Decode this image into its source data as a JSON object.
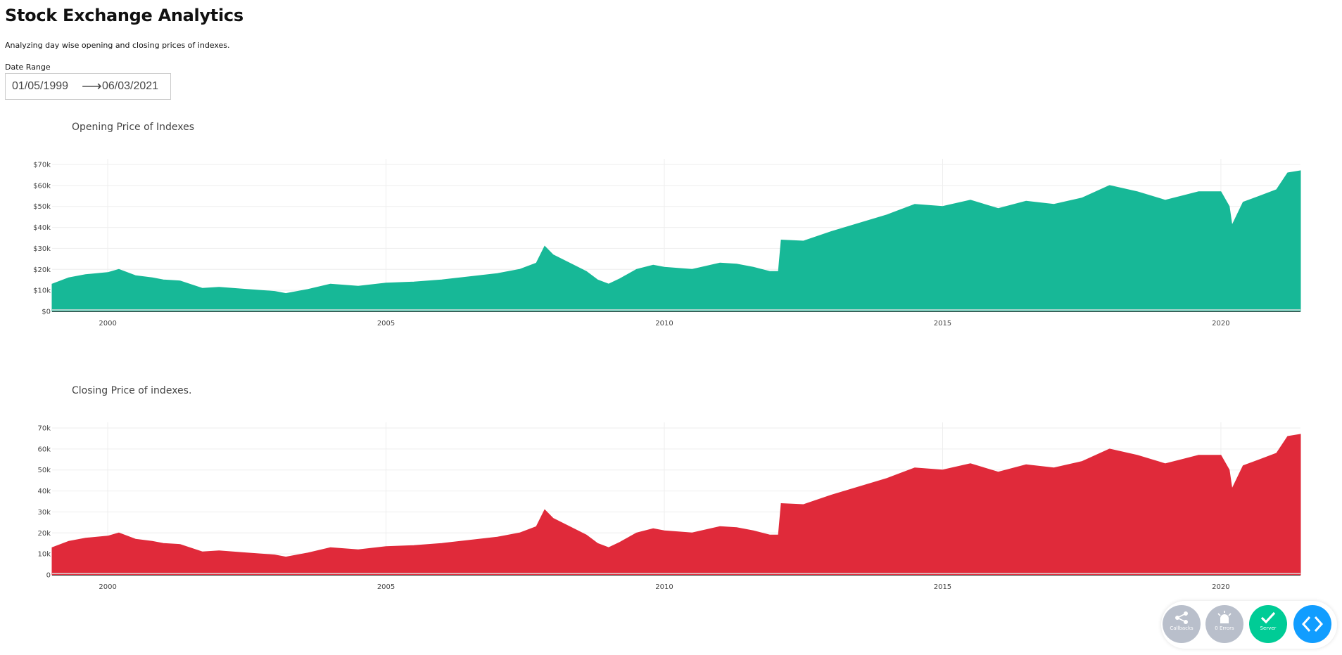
{
  "page": {
    "title": "Stock Exchange Analytics",
    "subtitle": "Analyzing day wise opening and closing prices of indexes.",
    "date_range": {
      "label": "Date Range",
      "start": "01/05/1999",
      "end": "06/03/2021",
      "separator": "⟶"
    }
  },
  "debug_menu": {
    "callbacks_label": "Callbacks",
    "errors_label": "0 Errors",
    "server_label": "Server",
    "colors": {
      "inactive": "#b9bfcb",
      "server": "#00cc96",
      "toggle": "#119dff"
    }
  },
  "chart_data": [
    {
      "type": "area",
      "title": "Opening Price of Indexes",
      "color": "#17b897",
      "x_ticks": [
        2000,
        2005,
        2010,
        2015,
        2020
      ],
      "x_tick_labels": [
        "2000",
        "2005",
        "2010",
        "2015",
        "2020"
      ],
      "y_ticks": [
        0,
        10000,
        20000,
        30000,
        40000,
        50000,
        60000,
        70000
      ],
      "y_tick_labels": [
        "$0",
        "$10k",
        "$20k",
        "$30k",
        "$40k",
        "$50k",
        "$60k",
        "$70k"
      ],
      "xlim": [
        1999.0,
        2021.43
      ],
      "ylim": [
        0,
        70000
      ],
      "grid": true,
      "x": [
        1999.0,
        1999.3,
        1999.6,
        2000.0,
        2000.2,
        2000.5,
        2000.8,
        2001.0,
        2001.3,
        2001.7,
        2002.0,
        2002.5,
        2003.0,
        2003.2,
        2003.6,
        2004.0,
        2004.5,
        2005.0,
        2005.5,
        2006.0,
        2006.5,
        2007.0,
        2007.4,
        2007.7,
        2007.85,
        2008.0,
        2008.3,
        2008.6,
        2008.8,
        2009.0,
        2009.2,
        2009.5,
        2009.8,
        2010.0,
        2010.5,
        2011.0,
        2011.3,
        2011.6,
        2011.9,
        2012.05,
        2012.1,
        2012.5,
        2013.0,
        2013.5,
        2014.0,
        2014.5,
        2015.0,
        2015.5,
        2016.0,
        2016.5,
        2017.0,
        2017.5,
        2018.0,
        2018.5,
        2019.0,
        2019.3,
        2019.6,
        2020.0,
        2020.15,
        2020.2,
        2020.4,
        2020.7,
        2021.0,
        2021.2,
        2021.43
      ],
      "y": [
        13000,
        16000,
        17500,
        18500,
        20000,
        17000,
        16000,
        15000,
        14500,
        11000,
        11500,
        10500,
        9500,
        8500,
        10500,
        13000,
        12000,
        13500,
        14000,
        15000,
        16500,
        18000,
        20000,
        23000,
        31000,
        27000,
        23000,
        19000,
        15000,
        13000,
        15500,
        20000,
        22000,
        21000,
        20000,
        23000,
        22500,
        21000,
        19000,
        19000,
        34000,
        33500,
        38000,
        42000,
        46000,
        51000,
        50000,
        53000,
        49000,
        52500,
        51000,
        54000,
        60000,
        57000,
        53000,
        55000,
        57000,
        57000,
        50000,
        41000,
        52000,
        55000,
        58000,
        66000,
        67000
      ]
    },
    {
      "type": "area",
      "title": "Closing Price of indexes.",
      "color": "#e02a3a",
      "x_ticks": [
        2000,
        2005,
        2010,
        2015,
        2020
      ],
      "x_tick_labels": [
        "2000",
        "2005",
        "2010",
        "2015",
        "2020"
      ],
      "y_ticks": [
        0,
        10000,
        20000,
        30000,
        40000,
        50000,
        60000,
        70000
      ],
      "y_tick_labels": [
        "0",
        "10k",
        "20k",
        "30k",
        "40k",
        "50k",
        "60k",
        "70k"
      ],
      "xlim": [
        1999.0,
        2021.43
      ],
      "ylim": [
        0,
        70000
      ],
      "grid": true,
      "x": [
        1999.0,
        1999.3,
        1999.6,
        2000.0,
        2000.2,
        2000.5,
        2000.8,
        2001.0,
        2001.3,
        2001.7,
        2002.0,
        2002.5,
        2003.0,
        2003.2,
        2003.6,
        2004.0,
        2004.5,
        2005.0,
        2005.5,
        2006.0,
        2006.5,
        2007.0,
        2007.4,
        2007.7,
        2007.85,
        2008.0,
        2008.3,
        2008.6,
        2008.8,
        2009.0,
        2009.2,
        2009.5,
        2009.8,
        2010.0,
        2010.5,
        2011.0,
        2011.3,
        2011.6,
        2011.9,
        2012.05,
        2012.1,
        2012.5,
        2013.0,
        2013.5,
        2014.0,
        2014.5,
        2015.0,
        2015.5,
        2016.0,
        2016.5,
        2017.0,
        2017.5,
        2018.0,
        2018.5,
        2019.0,
        2019.3,
        2019.6,
        2020.0,
        2020.15,
        2020.2,
        2020.4,
        2020.7,
        2021.0,
        2021.2,
        2021.43
      ],
      "y": [
        13000,
        16000,
        17500,
        18500,
        20000,
        17000,
        16000,
        15000,
        14500,
        11000,
        11500,
        10500,
        9500,
        8500,
        10500,
        13000,
        12000,
        13500,
        14000,
        15000,
        16500,
        18000,
        20000,
        23000,
        31000,
        27000,
        23000,
        19000,
        15000,
        13000,
        15500,
        20000,
        22000,
        21000,
        20000,
        23000,
        22500,
        21000,
        19000,
        19000,
        34000,
        33500,
        38000,
        42000,
        46000,
        51000,
        50000,
        53000,
        49000,
        52500,
        51000,
        54000,
        60000,
        57000,
        53000,
        55000,
        57000,
        57000,
        50000,
        41000,
        52000,
        55000,
        58000,
        66000,
        67000
      ]
    }
  ]
}
